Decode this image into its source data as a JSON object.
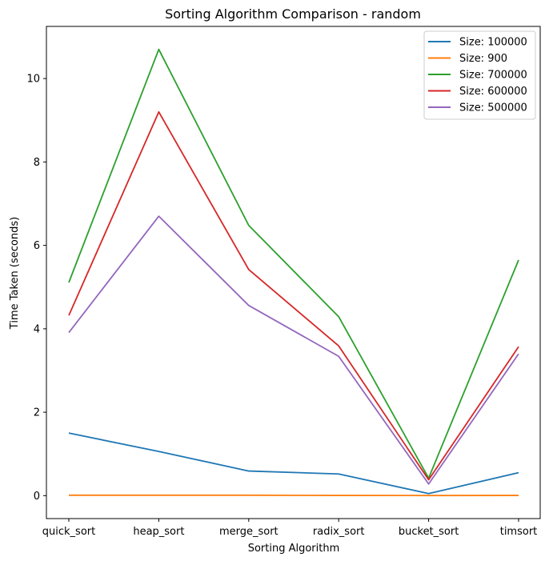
{
  "chart_data": {
    "type": "line",
    "title": "Sorting Algorithm Comparison - random",
    "xlabel": "Sorting Algorithm",
    "ylabel": "Time Taken (seconds)",
    "categories": [
      "quick_sort",
      "heap_sort",
      "merge_sort",
      "radix_sort",
      "bucket_sort",
      "timsort"
    ],
    "ylim": [
      -0.55,
      11.25
    ],
    "yticks": [
      0,
      2,
      4,
      6,
      8,
      10
    ],
    "grid": false,
    "legend_position": "top-right",
    "series": [
      {
        "name": "Size: 100000",
        "color": "#1f77b4",
        "values": [
          1.5,
          1.06,
          0.59,
          0.52,
          0.05,
          0.55
        ]
      },
      {
        "name": "Size: 900",
        "color": "#ff7f0e",
        "values": [
          0.01,
          0.01,
          0.01,
          0.005,
          0.003,
          0.005
        ]
      },
      {
        "name": "Size: 700000",
        "color": "#2ca02c",
        "values": [
          5.11,
          10.7,
          6.48,
          4.29,
          0.42,
          5.65
        ]
      },
      {
        "name": "Size: 600000",
        "color": "#d62728",
        "values": [
          4.32,
          9.2,
          5.42,
          3.59,
          0.38,
          3.57
        ]
      },
      {
        "name": "Size: 500000",
        "color": "#9467bd",
        "values": [
          3.91,
          6.7,
          4.56,
          3.34,
          0.28,
          3.4
        ]
      }
    ]
  }
}
